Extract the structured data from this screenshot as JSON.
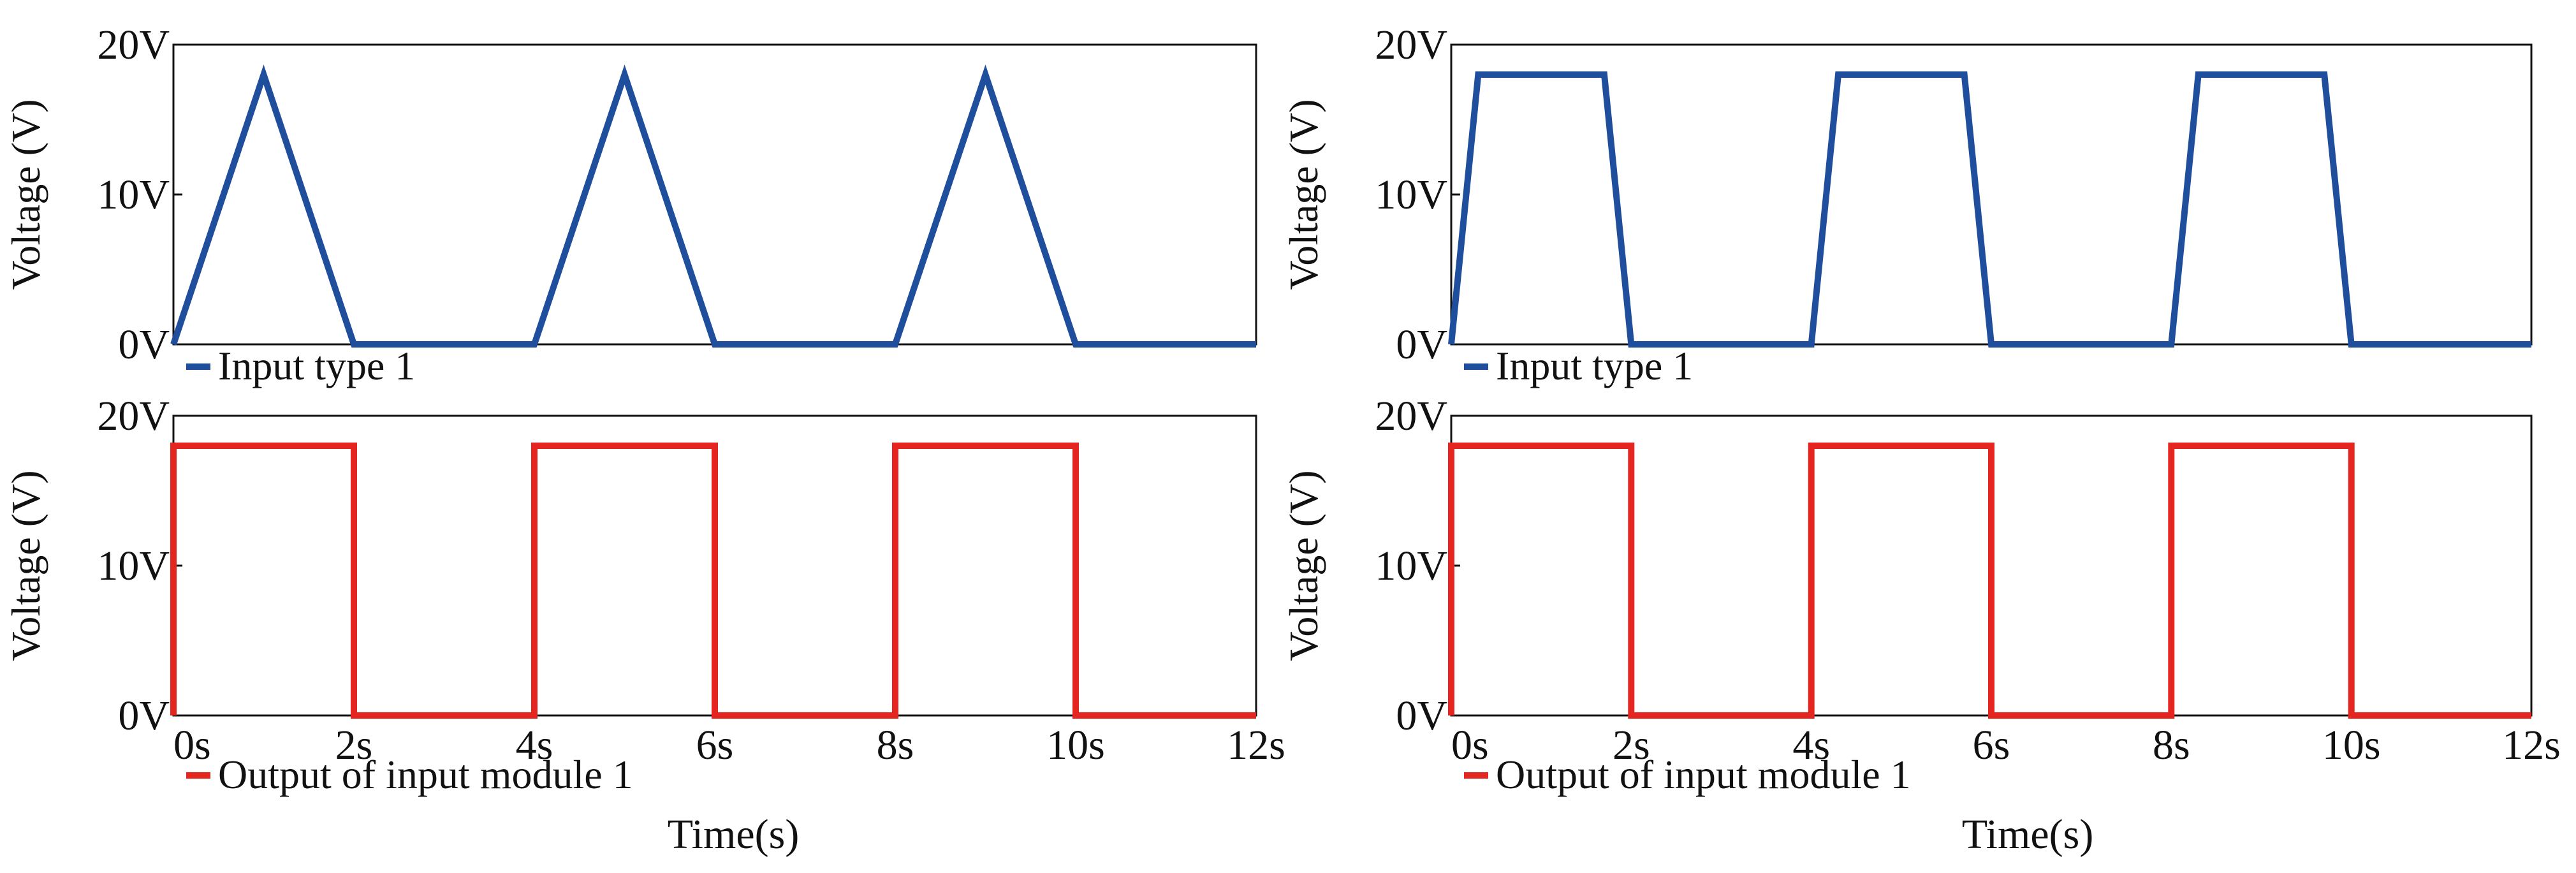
{
  "colors": {
    "input": "#1f4e9c",
    "output": "#e52620",
    "axis": "#111111"
  },
  "chart_data": [
    {
      "type": "line",
      "ylabel": "Voltage (V)",
      "ylim": [
        0,
        20
      ],
      "xlim": [
        0,
        12
      ],
      "y_ticks": [
        "0V",
        "10V",
        "20V"
      ],
      "legend": "Input type 1",
      "series": [
        {
          "name": "Input type 1",
          "color": "#1f4e9c",
          "x": [
            0,
            1,
            2,
            4,
            5,
            6,
            8,
            9,
            10,
            12
          ],
          "y": [
            0,
            18,
            0,
            0,
            18,
            0,
            0,
            18,
            0,
            0
          ]
        }
      ]
    },
    {
      "type": "line",
      "ylabel": "Voltage (V)",
      "ylim": [
        0,
        20
      ],
      "xlim": [
        0,
        12
      ],
      "y_ticks": [
        "0V",
        "10V",
        "20V"
      ],
      "legend": "Input type 1",
      "series": [
        {
          "name": "Input type 1",
          "color": "#1f4e9c",
          "x": [
            0,
            0.3,
            1.7,
            2,
            4,
            4.3,
            5.7,
            6,
            8,
            8.3,
            9.7,
            10,
            12
          ],
          "y": [
            0,
            18,
            18,
            0,
            0,
            18,
            18,
            0,
            0,
            18,
            18,
            0,
            0
          ]
        }
      ]
    },
    {
      "type": "line",
      "ylabel": "Voltage (V)",
      "xlabel": "Time(s)",
      "ylim": [
        0,
        20
      ],
      "xlim": [
        0,
        12
      ],
      "y_ticks": [
        "0V",
        "10V",
        "20V"
      ],
      "x_ticks": [
        "0s",
        "2s",
        "4s",
        "6s",
        "8s",
        "10s",
        "12s"
      ],
      "legend": "Output of input module 1",
      "series": [
        {
          "name": "Output of input module 1",
          "color": "#e52620",
          "x": [
            0,
            0,
            2,
            2,
            4,
            4,
            6,
            6,
            8,
            8,
            10,
            10,
            12
          ],
          "y": [
            0,
            18,
            18,
            0,
            0,
            18,
            18,
            0,
            0,
            18,
            18,
            0,
            0
          ]
        }
      ]
    },
    {
      "type": "line",
      "ylabel": "Voltage (V)",
      "xlabel": "Time(s)",
      "ylim": [
        0,
        20
      ],
      "xlim": [
        0,
        12
      ],
      "y_ticks": [
        "0V",
        "10V",
        "20V"
      ],
      "x_ticks": [
        "0s",
        "2s",
        "4s",
        "6s",
        "8s",
        "10s",
        "12s"
      ],
      "legend": "Output of input module 1",
      "series": [
        {
          "name": "Output of input module 1",
          "color": "#e52620",
          "x": [
            0,
            0,
            2,
            2,
            4,
            4,
            6,
            6,
            8,
            8,
            10,
            10,
            12
          ],
          "y": [
            0,
            18,
            18,
            0,
            0,
            18,
            18,
            0,
            0,
            18,
            18,
            0,
            0
          ]
        }
      ]
    }
  ]
}
